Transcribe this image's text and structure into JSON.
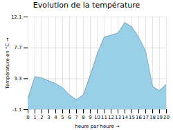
{
  "chart_data": {
    "type": "area",
    "title": "Evolution de la température",
    "xlabel": "heure par heure",
    "ylabel": "Température en °C",
    "x": [
      0,
      1,
      2,
      3,
      4,
      5,
      6,
      7,
      8,
      9,
      10,
      11,
      12,
      13,
      14,
      15,
      16,
      17,
      18,
      19,
      20
    ],
    "values": [
      0.5,
      3.6,
      3.4,
      3.0,
      2.6,
      2.0,
      1.0,
      0.3,
      1.0,
      3.8,
      6.8,
      9.2,
      9.5,
      9.8,
      11.3,
      10.7,
      9.2,
      7.2,
      2.2,
      1.6,
      2.5
    ],
    "color": "#99d0e8",
    "xlim": [
      0,
      20
    ],
    "xticks": [
      0,
      1,
      2,
      3,
      4,
      5,
      6,
      7,
      8,
      9,
      10,
      11,
      12,
      13,
      14,
      15,
      16,
      17,
      18,
      19,
      20
    ],
    "ylim": [
      -1.1,
      12.1
    ],
    "yticks": [
      -1.1,
      3.3,
      7.7,
      12.1
    ],
    "grid": true
  }
}
